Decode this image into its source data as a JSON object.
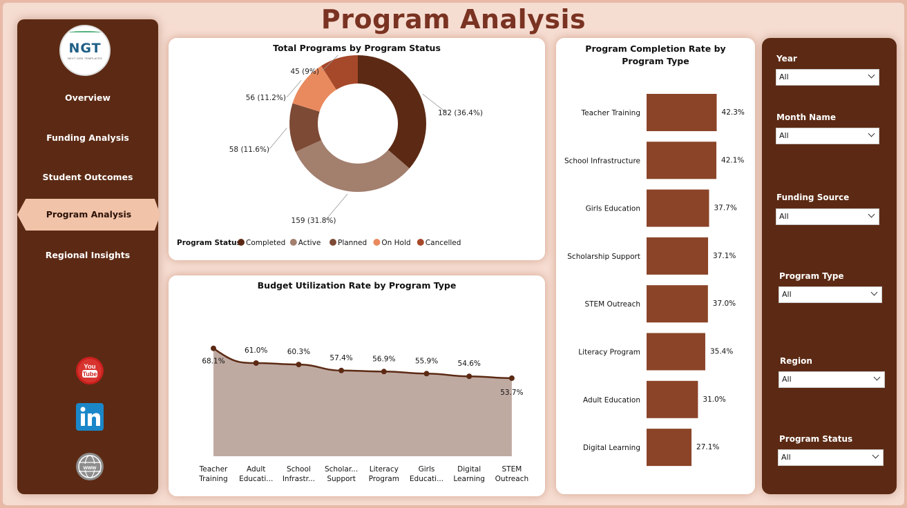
{
  "page": {
    "title": "Program Analysis"
  },
  "logo": {
    "text": "NGT",
    "subtitle": "NEXT GEN TEMPLATES"
  },
  "nav": {
    "items": [
      {
        "label": "Overview",
        "active": false
      },
      {
        "label": "Funding Analysis",
        "active": false
      },
      {
        "label": "Student Outcomes",
        "active": false
      },
      {
        "label": "Program Analysis",
        "active": true
      },
      {
        "label": "Regional Insights",
        "active": false
      }
    ],
    "social": [
      "youtube-icon",
      "linkedin-icon",
      "web-icon"
    ]
  },
  "colors": {
    "brand_dark": "#5c2a14",
    "accent": "#8b4428",
    "title": "#7a3322"
  },
  "charts": {
    "donut": {
      "title": "Total Programs by Program Status"
    },
    "line": {
      "title": "Budget Utilization Rate by Program Type"
    },
    "bar": {
      "title": "Program Completion Rate by Program Type"
    }
  },
  "chart_data": [
    {
      "type": "pie",
      "title": "Total Programs by Program Status",
      "legend_title": "Program Status",
      "legend_position": "bottom",
      "slices": [
        {
          "name": "Completed",
          "value": 182,
          "label": "182 (36.4%)",
          "color": "#5c2a14"
        },
        {
          "name": "Active",
          "value": 159,
          "label": "159 (31.8%)",
          "color": "#a37f6e"
        },
        {
          "name": "Planned",
          "value": 58,
          "label": "58 (11.6%)",
          "color": "#7d4a35"
        },
        {
          "name": "On Hold",
          "value": 56,
          "label": "56 (11.2%)",
          "color": "#e98a5e"
        },
        {
          "name": "Cancelled",
          "value": 45,
          "label": "45 (9%)",
          "color": "#a6482a"
        }
      ]
    },
    {
      "type": "area",
      "title": "Budget Utilization Rate by Program Type",
      "categories": [
        "Teacher Training",
        "Adult Educati...",
        "School Infrastr...",
        "Scholar... Support",
        "Literacy Program",
        "Girls Educati...",
        "Digital Learning",
        "STEM Outreach"
      ],
      "values": [
        68.1,
        61.0,
        60.3,
        57.4,
        56.9,
        55.9,
        54.6,
        53.7
      ],
      "labels": [
        "68.1%",
        "61.0%",
        "60.3%",
        "57.4%",
        "56.9%",
        "55.9%",
        "54.6%",
        "53.7%"
      ]
    },
    {
      "type": "bar",
      "orientation": "horizontal",
      "title": "Program Completion Rate by Program Type",
      "categories": [
        "Teacher Training",
        "School Infrastructure",
        "Girls Education",
        "Scholarship Support",
        "STEM Outreach",
        "Literacy Program",
        "Adult Education",
        "Digital Learning"
      ],
      "values": [
        42.3,
        42.1,
        37.7,
        37.1,
        37.0,
        35.4,
        31.0,
        27.1
      ],
      "labels": [
        "42.3%",
        "42.1%",
        "37.7%",
        "37.1%",
        "37.0%",
        "35.4%",
        "31.0%",
        "27.1%"
      ],
      "color": "#8b4428"
    }
  ],
  "filters": [
    {
      "label": "Year",
      "value": "All"
    },
    {
      "label": "Month Name",
      "value": "All"
    },
    {
      "label": "Funding Source",
      "value": "All"
    },
    {
      "label": "Program Type",
      "value": "All"
    },
    {
      "label": "Region",
      "value": "All"
    },
    {
      "label": "Program Status",
      "value": "All"
    }
  ]
}
